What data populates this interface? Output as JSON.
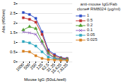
{
  "chart_data": {
    "type": "line",
    "title": "anti-mouse IgG/Fab\nclone# RM8024 (µg/ml)",
    "x_label": "Mouse IgG (50uL/well)",
    "y_label": "Abs (450nm)",
    "categories": [
      "1000",
      "500",
      "250",
      "125",
      "62.5",
      "31.25",
      "15.625",
      "7.8125"
    ],
    "series": [
      {
        "name": "1",
        "color": "#3050c8",
        "marker": "square",
        "values": [
          2.55,
          2.45,
          2.25,
          1.55,
          0.62,
          0.38,
          0.22,
          0.18
        ]
      },
      {
        "name": "0.5",
        "color": "#c03030",
        "marker": "square",
        "values": [
          2.28,
          2.2,
          2.05,
          1.42,
          0.55,
          0.32,
          0.2,
          0.16
        ]
      },
      {
        "name": "0.2",
        "color": "#50a030",
        "marker": "triangle",
        "values": [
          1.65,
          1.82,
          1.72,
          1.05,
          0.45,
          0.22,
          0.16,
          0.13
        ]
      },
      {
        "name": "0.1",
        "color": "#9060c0",
        "marker": "x",
        "values": [
          1.55,
          1.5,
          1.42,
          0.95,
          0.38,
          0.2,
          0.14,
          0.12
        ]
      },
      {
        "name": "0.05",
        "color": "#30a8c0",
        "marker": "square",
        "values": [
          1.05,
          0.98,
          0.82,
          0.52,
          0.25,
          0.15,
          0.12,
          0.1
        ]
      },
      {
        "name": "0.025",
        "color": "#d88020",
        "marker": "square",
        "values": [
          0.55,
          0.52,
          0.32,
          0.18,
          0.12,
          0.1,
          0.09,
          0.08
        ]
      }
    ],
    "ylim": [
      0,
      3.0
    ],
    "yticks": [
      0,
      0.5,
      1,
      1.5,
      2,
      2.5,
      3
    ],
    "grid": true,
    "legend": "right"
  }
}
